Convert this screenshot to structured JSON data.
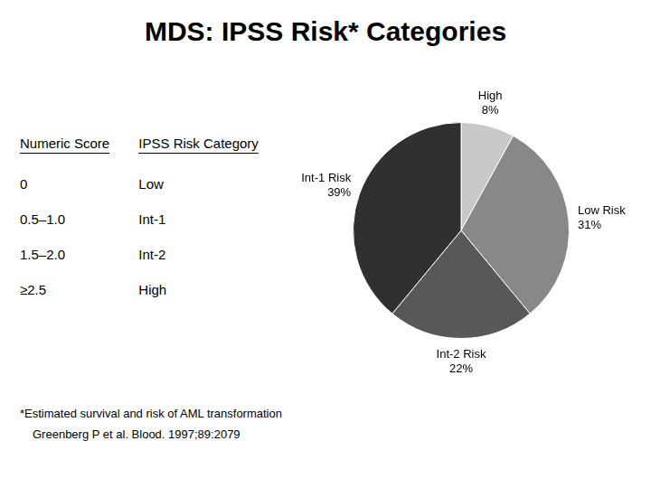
{
  "chart_data": {
    "type": "pie",
    "title": "MDS: IPSS Risk* Categories",
    "categories": [
      "High",
      "Low Risk",
      "Int-2 Risk",
      "Int-1 Risk"
    ],
    "values": [
      8,
      31,
      22,
      39
    ],
    "value_labels": [
      "8%",
      "31%",
      "22%",
      "39%"
    ],
    "colors": [
      "#c8c8c8",
      "#888888",
      "#585858",
      "#303030"
    ],
    "data_labels": true,
    "table": {
      "header": [
        "Numeric Score",
        "IPSS Risk Category"
      ],
      "rows": [
        [
          "0",
          "Low"
        ],
        [
          "0.5–1.0",
          "Int-1"
        ],
        [
          "1.5–2.0",
          "Int-2"
        ],
        [
          "≥2.5",
          "High"
        ]
      ]
    },
    "annotations": [
      "*Estimated survival and risk of AML transformation",
      "Greenberg P et al. Blood. 1997;89:2079"
    ]
  }
}
